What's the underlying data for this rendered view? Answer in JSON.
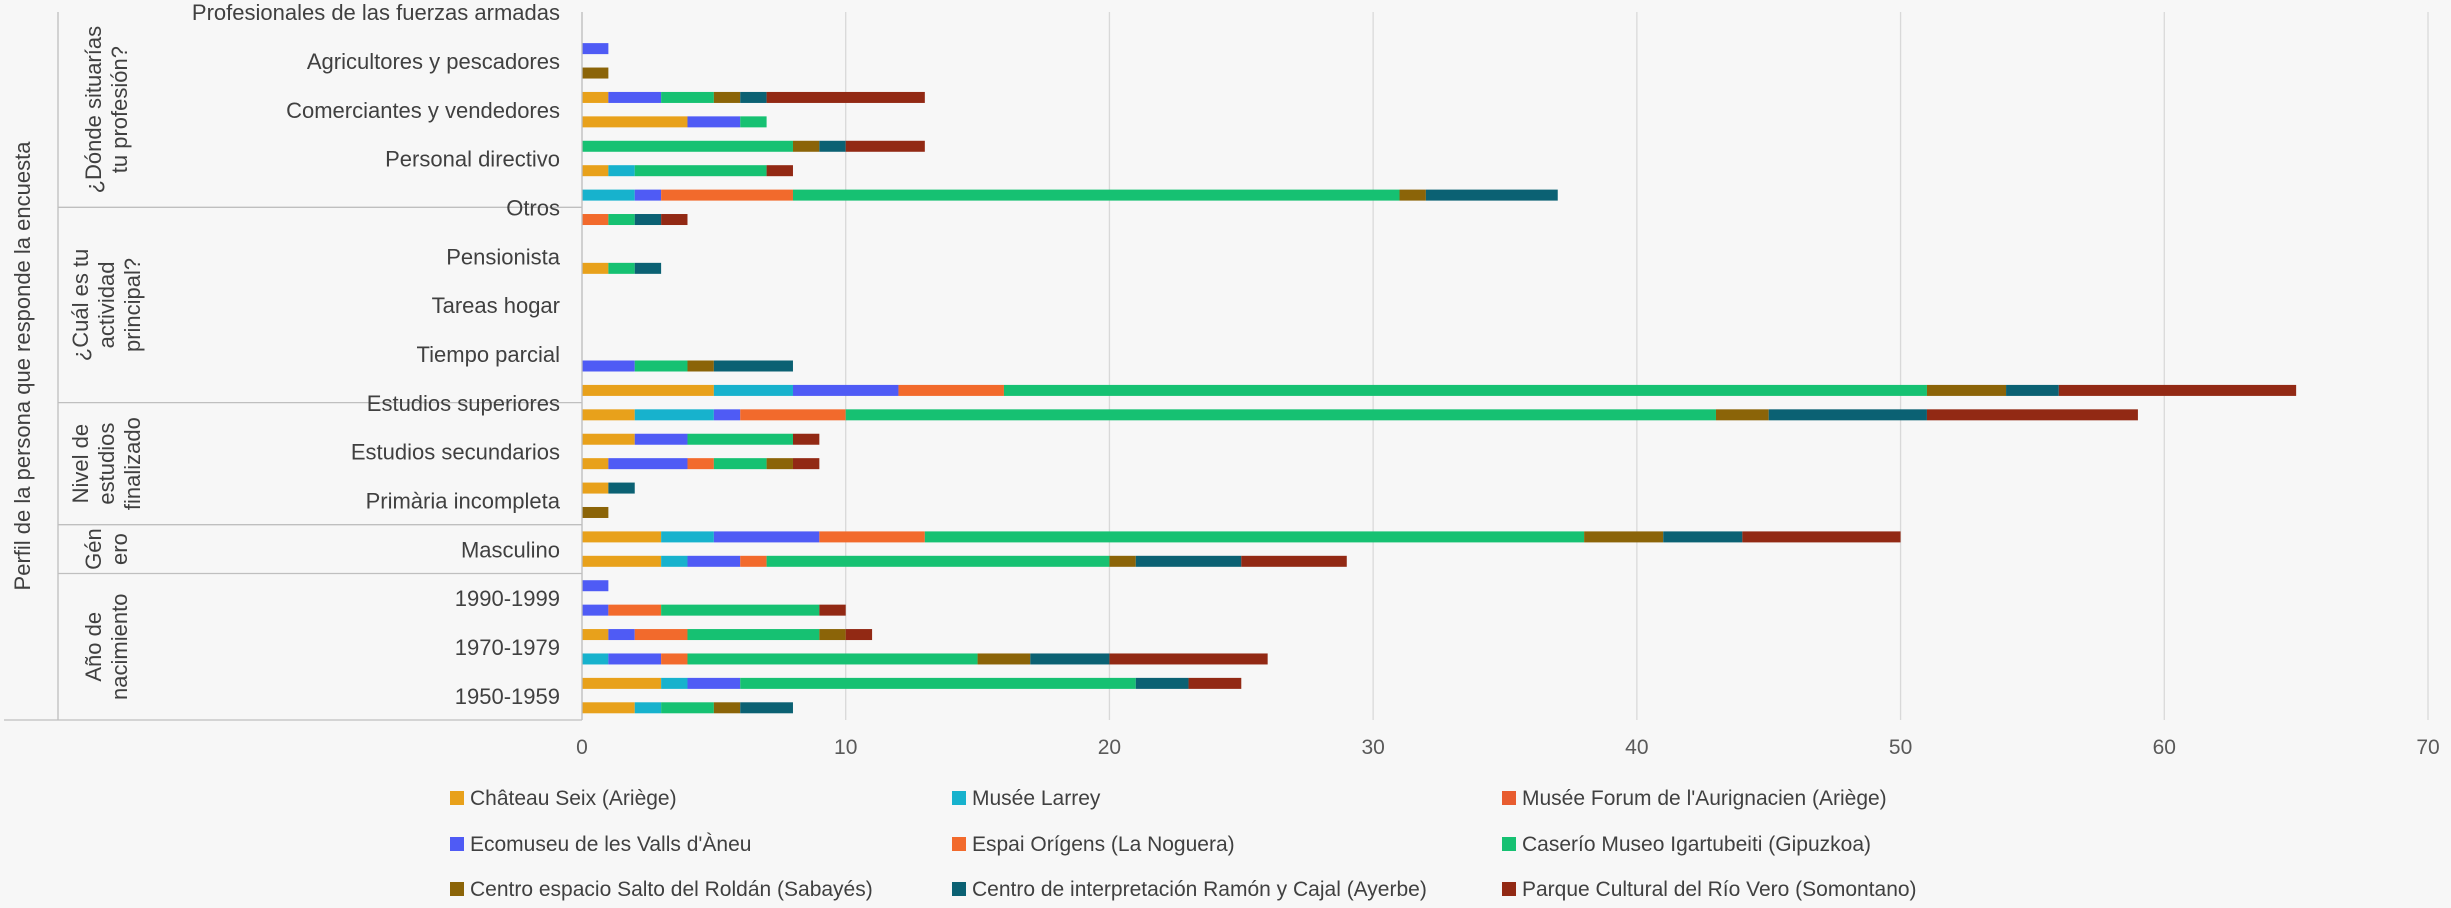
{
  "chart_data": {
    "type": "bar",
    "orientation": "horizontal",
    "stacked": true,
    "xlim": [
      0,
      70
    ],
    "xticks": [
      0,
      10,
      20,
      30,
      40,
      50,
      60,
      70
    ],
    "grid": true,
    "legend_position": "bottom",
    "outer_label": "Perfil de la persona que responde la encuesta",
    "groups": [
      {
        "label": "¿Dónde situarías tu profesión?",
        "label_lines": [
          "¿Dónde situarías",
          "tu profesión?"
        ],
        "rows": 8
      },
      {
        "label": "¿Cuál es tu actividad principal?",
        "label_lines": [
          "¿Cuál es tu",
          "actividad",
          "principal?"
        ],
        "rows": 8
      },
      {
        "label": "Nivel de estudios finalizado",
        "label_lines": [
          "Nivel de",
          "estudios",
          "finalizado"
        ],
        "rows": 5
      },
      {
        "label": "Género",
        "label_lines": [
          "Gén",
          "ero"
        ],
        "rows": 2
      },
      {
        "label": "Año de nacimiento",
        "label_lines": [
          "Año de",
          "nacimiento"
        ],
        "rows": 6
      }
    ],
    "row_labels": [
      "Profesionales de las fuerzas armadas",
      "",
      "Agricultores y pescadores",
      "",
      "Comerciantes y vendedores",
      "",
      "Personal directivo",
      "",
      "Otros",
      "",
      "Pensionista",
      "",
      "Tareas hogar",
      "",
      "Tiempo parcial",
      "",
      "Estudios superiores",
      "",
      "Estudios secundarios",
      "",
      "Primària incompleta",
      "",
      "Masculino",
      "",
      "1990-1999",
      "",
      "1970-1979",
      "",
      "1950-1959"
    ],
    "series": [
      {
        "name": "Château Seix (Ariège)",
        "color": "#E8A11B",
        "values": [
          0,
          0,
          0,
          1,
          4,
          0,
          1,
          0,
          0,
          0,
          1,
          0,
          0,
          0,
          0,
          5,
          2,
          2,
          1,
          1,
          0,
          3,
          3,
          0,
          0,
          1,
          0,
          3,
          2
        ]
      },
      {
        "name": "Musée Larrey",
        "color": "#17B2CD",
        "values": [
          0,
          0,
          0,
          0,
          0,
          0,
          1,
          2,
          0,
          0,
          0,
          0,
          0,
          0,
          0,
          3,
          3,
          0,
          0,
          0,
          0,
          2,
          1,
          0,
          0,
          0,
          1,
          1,
          1
        ]
      },
      {
        "name": "Musée Forum de l'Aurignacien (Ariège)",
        "color": "#E85C2F",
        "values": [
          0,
          0,
          0,
          0,
          0,
          0,
          0,
          0,
          0,
          0,
          0,
          0,
          0,
          0,
          0,
          0,
          0,
          0,
          0,
          0,
          0,
          0,
          0,
          0,
          0,
          0,
          0,
          0,
          0
        ]
      },
      {
        "name": "Ecomuseu de les Valls d'Àneu",
        "color": "#4F5BF5",
        "values": [
          0,
          1,
          0,
          2,
          2,
          0,
          0,
          1,
          0,
          0,
          0,
          0,
          0,
          0,
          2,
          4,
          1,
          2,
          3,
          0,
          0,
          4,
          2,
          1,
          1,
          1,
          2,
          2,
          0
        ]
      },
      {
        "name": "Espai Orígens (La Noguera)",
        "color": "#F26A2C",
        "values": [
          0,
          0,
          0,
          0,
          0,
          0,
          0,
          5,
          1,
          0,
          0,
          0,
          0,
          0,
          0,
          4,
          4,
          0,
          1,
          0,
          0,
          4,
          1,
          0,
          2,
          2,
          1,
          0,
          0
        ]
      },
      {
        "name": "Caserío Museo Igartubeiti (Gipuzkoa)",
        "color": "#16C172",
        "values": [
          0,
          0,
          0,
          2,
          1,
          8,
          5,
          23,
          1,
          0,
          1,
          0,
          0,
          0,
          2,
          35,
          33,
          4,
          2,
          0,
          0,
          25,
          13,
          0,
          6,
          5,
          11,
          15,
          2
        ]
      },
      {
        "name": "Centro espacio Salto del Roldán (Sabayés)",
        "color": "#8B6408",
        "values": [
          0,
          0,
          1,
          1,
          0,
          1,
          0,
          1,
          0,
          0,
          0,
          0,
          0,
          0,
          1,
          3,
          2,
          0,
          1,
          0,
          1,
          3,
          1,
          0,
          0,
          1,
          2,
          0,
          1
        ]
      },
      {
        "name": "Centro de interpretación Ramón y Cajal (Ayerbe)",
        "color": "#0B6173",
        "values": [
          0,
          0,
          0,
          1,
          0,
          1,
          0,
          5,
          1,
          0,
          1,
          0,
          0,
          0,
          3,
          2,
          6,
          0,
          0,
          1,
          0,
          3,
          4,
          0,
          0,
          0,
          3,
          2,
          2
        ]
      },
      {
        "name": "Parque Cultural del Río Vero (Somontano)",
        "color": "#922914",
        "values": [
          0,
          0,
          0,
          6,
          0,
          3,
          1,
          0,
          1,
          0,
          0,
          0,
          0,
          0,
          0,
          9,
          8,
          1,
          1,
          0,
          0,
          6,
          4,
          0,
          1,
          1,
          6,
          2,
          0
        ]
      }
    ]
  }
}
